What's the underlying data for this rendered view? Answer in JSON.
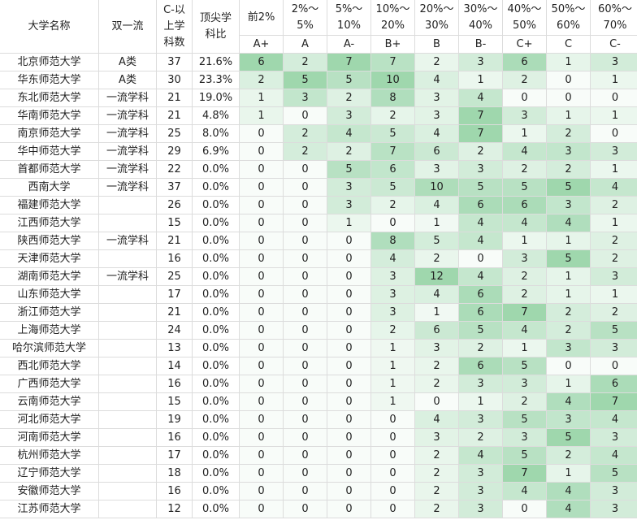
{
  "table": {
    "headers": [
      [
        "大学名称"
      ],
      [
        "双一流"
      ],
      [
        "C-以",
        "上学",
        "科数"
      ],
      [
        "顶尖学",
        "科比"
      ]
    ],
    "grade_headers": [
      {
        "range": [
          "前2%"
        ],
        "grade": "A+"
      },
      {
        "range": [
          "2%～",
          "5%"
        ],
        "grade": "A"
      },
      {
        "range": [
          "5%～",
          "10%"
        ],
        "grade": "A-"
      },
      {
        "range": [
          "10%～",
          "20%"
        ],
        "grade": "B+"
      },
      {
        "range": [
          "20%～",
          "30%"
        ],
        "grade": "B"
      },
      {
        "range": [
          "30%～",
          "40%"
        ],
        "grade": "B-"
      },
      {
        "range": [
          "40%～",
          "50%"
        ],
        "grade": "C+"
      },
      {
        "range": [
          "50%～",
          "60%"
        ],
        "grade": "C"
      },
      {
        "range": [
          "60%～",
          "70%"
        ],
        "grade": "C-"
      }
    ],
    "rows": [
      {
        "name": "北京师范大学",
        "tier": "A类",
        "count": 37,
        "top_ratio": "21.6%",
        "grades": [
          6,
          2,
          7,
          7,
          2,
          3,
          6,
          1,
          3
        ]
      },
      {
        "name": "华东师范大学",
        "tier": "A类",
        "count": 30,
        "top_ratio": "23.3%",
        "grades": [
          2,
          5,
          5,
          10,
          4,
          1,
          2,
          0,
          1
        ]
      },
      {
        "name": "东北师范大学",
        "tier": "一流学科",
        "count": 21,
        "top_ratio": "19.0%",
        "grades": [
          1,
          3,
          2,
          8,
          3,
          4,
          0,
          0,
          0
        ]
      },
      {
        "name": "华南师范大学",
        "tier": "一流学科",
        "count": 21,
        "top_ratio": "4.8%",
        "grades": [
          1,
          0,
          3,
          2,
          3,
          7,
          3,
          1,
          1
        ]
      },
      {
        "name": "南京师范大学",
        "tier": "一流学科",
        "count": 25,
        "top_ratio": "8.0%",
        "grades": [
          0,
          2,
          4,
          5,
          4,
          7,
          1,
          2,
          0
        ]
      },
      {
        "name": "华中师范大学",
        "tier": "一流学科",
        "count": 29,
        "top_ratio": "6.9%",
        "grades": [
          0,
          2,
          2,
          7,
          6,
          2,
          4,
          3,
          3
        ]
      },
      {
        "name": "首都师范大学",
        "tier": "一流学科",
        "count": 22,
        "top_ratio": "0.0%",
        "grades": [
          0,
          0,
          5,
          6,
          3,
          3,
          2,
          2,
          1
        ]
      },
      {
        "name": "西南大学",
        "tier": "一流学科",
        "count": 37,
        "top_ratio": "0.0%",
        "grades": [
          0,
          0,
          3,
          5,
          10,
          5,
          5,
          5,
          4
        ]
      },
      {
        "name": "福建师范大学",
        "tier": null,
        "count": 26,
        "top_ratio": "0.0%",
        "grades": [
          0,
          0,
          3,
          2,
          4,
          6,
          6,
          3,
          2
        ]
      },
      {
        "name": "江西师范大学",
        "tier": null,
        "count": 15,
        "top_ratio": "0.0%",
        "grades": [
          0,
          0,
          1,
          0,
          1,
          4,
          4,
          4,
          1
        ]
      },
      {
        "name": "陕西师范大学",
        "tier": "一流学科",
        "count": 21,
        "top_ratio": "0.0%",
        "grades": [
          0,
          0,
          0,
          8,
          5,
          4,
          1,
          1,
          2
        ]
      },
      {
        "name": "天津师范大学",
        "tier": null,
        "count": 16,
        "top_ratio": "0.0%",
        "grades": [
          0,
          0,
          0,
          4,
          2,
          0,
          3,
          5,
          2
        ]
      },
      {
        "name": "湖南师范大学",
        "tier": "一流学科",
        "count": 25,
        "top_ratio": "0.0%",
        "grades": [
          0,
          0,
          0,
          3,
          12,
          4,
          2,
          1,
          3
        ]
      },
      {
        "name": "山东师范大学",
        "tier": null,
        "count": 17,
        "top_ratio": "0.0%",
        "grades": [
          0,
          0,
          0,
          3,
          4,
          6,
          2,
          1,
          1
        ]
      },
      {
        "name": "浙江师范大学",
        "tier": null,
        "count": 21,
        "top_ratio": "0.0%",
        "grades": [
          0,
          0,
          0,
          3,
          1,
          6,
          7,
          2,
          2
        ]
      },
      {
        "name": "上海师范大学",
        "tier": null,
        "count": 24,
        "top_ratio": "0.0%",
        "grades": [
          0,
          0,
          0,
          2,
          6,
          5,
          4,
          2,
          5
        ]
      },
      {
        "name": "哈尔滨师范大学",
        "tier": null,
        "count": 13,
        "top_ratio": "0.0%",
        "grades": [
          0,
          0,
          0,
          1,
          3,
          2,
          1,
          3,
          3
        ]
      },
      {
        "name": "西北师范大学",
        "tier": null,
        "count": 14,
        "top_ratio": "0.0%",
        "grades": [
          0,
          0,
          0,
          1,
          2,
          6,
          5,
          0,
          0
        ]
      },
      {
        "name": "广西师范大学",
        "tier": null,
        "count": 16,
        "top_ratio": "0.0%",
        "grades": [
          0,
          0,
          0,
          1,
          2,
          3,
          3,
          1,
          6
        ]
      },
      {
        "name": "云南师范大学",
        "tier": null,
        "count": 15,
        "top_ratio": "0.0%",
        "grades": [
          0,
          0,
          0,
          1,
          0,
          1,
          2,
          4,
          7
        ]
      },
      {
        "name": "河北师范大学",
        "tier": null,
        "count": 19,
        "top_ratio": "0.0%",
        "grades": [
          0,
          0,
          0,
          0,
          4,
          3,
          5,
          3,
          4
        ]
      },
      {
        "name": "河南师范大学",
        "tier": null,
        "count": 16,
        "top_ratio": "0.0%",
        "grades": [
          0,
          0,
          0,
          0,
          3,
          2,
          3,
          5,
          3
        ]
      },
      {
        "name": "杭州师范大学",
        "tier": null,
        "count": 17,
        "top_ratio": "0.0%",
        "grades": [
          0,
          0,
          0,
          0,
          2,
          4,
          5,
          2,
          4
        ]
      },
      {
        "name": "辽宁师范大学",
        "tier": null,
        "count": 18,
        "top_ratio": "0.0%",
        "grades": [
          0,
          0,
          0,
          0,
          2,
          3,
          7,
          1,
          5
        ]
      },
      {
        "name": "安徽师范大学",
        "tier": null,
        "count": 16,
        "top_ratio": "0.0%",
        "grades": [
          0,
          0,
          0,
          0,
          2,
          3,
          4,
          4,
          3
        ]
      },
      {
        "name": "江苏师范大学",
        "tier": null,
        "count": 12,
        "top_ratio": "0.0%",
        "grades": [
          0,
          0,
          0,
          0,
          2,
          3,
          0,
          4,
          3
        ]
      }
    ]
  }
}
